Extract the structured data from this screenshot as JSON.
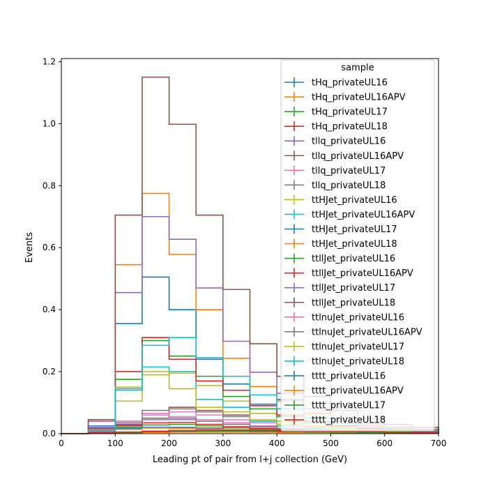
{
  "chart_data": {
    "type": "line",
    "xlabel": "Leading pt of pair from l+j collection (GeV)",
    "ylabel": "Events",
    "xlim": [
      0,
      700
    ],
    "ylim": [
      0,
      1.21
    ],
    "xticks": [
      "0",
      "100",
      "200",
      "300",
      "400",
      "500",
      "600",
      "700"
    ],
    "yticks": [
      "0.0",
      "0.2",
      "0.4",
      "0.6",
      "0.8",
      "1.0",
      "1.2"
    ],
    "grid": false,
    "legend_placement": "top-right",
    "legend_title": "sample",
    "bin_edges": [
      0,
      50,
      100,
      150,
      200,
      250,
      300,
      350,
      400,
      450,
      500,
      550,
      600,
      650,
      700
    ],
    "series": [
      {
        "name": "tHq_privateUL16",
        "color": "#1f77b4",
        "values": [
          0,
          0.015,
          0.017,
          0.02,
          0.02,
          0.018,
          0.012,
          0.01,
          0.008,
          0.006,
          0.005,
          0.004,
          0.003,
          0.002
        ]
      },
      {
        "name": "tHq_privateUL16APV",
        "color": "#ff7f0e",
        "values": [
          0,
          0.012,
          0.014,
          0.018,
          0.017,
          0.015,
          0.011,
          0.009,
          0.007,
          0.005,
          0.004,
          0.003,
          0.002,
          0.002
        ]
      },
      {
        "name": "tHq_privateUL17",
        "color": "#2ca02c",
        "values": [
          0,
          0.01,
          0.02,
          0.028,
          0.03,
          0.025,
          0.018,
          0.014,
          0.011,
          0.008,
          0.006,
          0.005,
          0.004,
          0.003
        ]
      },
      {
        "name": "tHq_privateUL18",
        "color": "#d62728",
        "values": [
          0,
          0.015,
          0.025,
          0.035,
          0.036,
          0.03,
          0.022,
          0.017,
          0.013,
          0.01,
          0.008,
          0.006,
          0.005,
          0.004
        ]
      },
      {
        "name": "tllq_privateUL16",
        "color": "#9467bd",
        "values": [
          0,
          0.02,
          0.03,
          0.045,
          0.045,
          0.04,
          0.03,
          0.022,
          0.016,
          0.012,
          0.009,
          0.007,
          0.005,
          0.004
        ]
      },
      {
        "name": "tllq_privateUL16APV",
        "color": "#8c564b",
        "values": [
          0,
          0.018,
          0.028,
          0.05,
          0.085,
          0.075,
          0.06,
          0.04,
          0.03,
          0.02,
          0.015,
          0.011,
          0.008,
          0.006
        ]
      },
      {
        "name": "tllq_privateUL17",
        "color": "#e377c2",
        "values": [
          0,
          0.012,
          0.035,
          0.065,
          0.07,
          0.06,
          0.045,
          0.035,
          0.025,
          0.018,
          0.013,
          0.01,
          0.007,
          0.005
        ]
      },
      {
        "name": "tllq_privateUL18",
        "color": "#7f7f7f",
        "values": [
          0,
          0.015,
          0.04,
          0.075,
          0.08,
          0.07,
          0.055,
          0.04,
          0.03,
          0.022,
          0.016,
          0.012,
          0.009,
          0.006
        ]
      },
      {
        "name": "ttHJet_privateUL16",
        "color": "#bcbd22",
        "values": [
          0,
          0.005,
          0.105,
          0.19,
          0.195,
          0.155,
          0.105,
          0.065,
          0.04,
          0.025,
          0.016,
          0.011,
          0.007,
          0.005
        ]
      },
      {
        "name": "ttHJet_privateUL16APV",
        "color": "#17becf",
        "values": [
          0,
          0.005,
          0.14,
          0.215,
          0.2,
          0.11,
          0.085,
          0.04,
          0.025,
          0.016,
          0.011,
          0.008,
          0.005,
          0.004
        ]
      },
      {
        "name": "ttHJet_privateUL17",
        "color": "#1f77b4",
        "values": [
          0,
          0.025,
          0.355,
          0.505,
          0.4,
          0.24,
          0.16,
          0.095,
          0.11,
          0.065,
          0.04,
          0.025,
          0.016,
          0.01
        ]
      },
      {
        "name": "ttHJet_privateUL18",
        "color": "#ff7f0e",
        "values": [
          0,
          0.045,
          0.545,
          0.775,
          0.578,
          0.4,
          0.243,
          0.152,
          0.105,
          0.065,
          0.04,
          0.026,
          0.017,
          0.012
        ]
      },
      {
        "name": "ttllJet_privateUL16",
        "color": "#2ca02c",
        "values": [
          0,
          0.008,
          0.175,
          0.3,
          0.25,
          0.185,
          0.12,
          0.08,
          0.055,
          0.035,
          0.022,
          0.015,
          0.01,
          0.007
        ]
      },
      {
        "name": "ttllJet_privateUL16APV",
        "color": "#d62728",
        "values": [
          0,
          0.01,
          0.2,
          0.31,
          0.24,
          0.17,
          0.14,
          0.09,
          0.06,
          0.04,
          0.025,
          0.017,
          0.011,
          0.008
        ]
      },
      {
        "name": "ttllJet_privateUL17",
        "color": "#9467bd",
        "values": [
          0,
          0.04,
          0.455,
          0.7,
          0.627,
          0.47,
          0.298,
          0.198,
          0.13,
          0.08,
          0.05,
          0.032,
          0.02,
          0.014
        ]
      },
      {
        "name": "ttllJet_privateUL18",
        "color": "#8c564b",
        "values": [
          0,
          0.045,
          0.705,
          1.15,
          0.998,
          0.705,
          0.465,
          0.29,
          0.185,
          0.12,
          0.075,
          0.048,
          0.03,
          0.02
        ]
      },
      {
        "name": "ttlnuJet_privateUL16",
        "color": "#e377c2",
        "values": [
          0,
          0.01,
          0.04,
          0.06,
          0.055,
          0.045,
          0.035,
          0.025,
          0.018,
          0.013,
          0.009,
          0.006,
          0.004,
          0.003
        ]
      },
      {
        "name": "ttlnuJet_privateUL16APV",
        "color": "#7f7f7f",
        "values": [
          0,
          0.008,
          0.035,
          0.05,
          0.05,
          0.04,
          0.03,
          0.022,
          0.016,
          0.011,
          0.008,
          0.006,
          0.004,
          0.003
        ]
      },
      {
        "name": "ttlnuJet_privateUL17",
        "color": "#bcbd22",
        "values": [
          0,
          0.01,
          0.15,
          0.2,
          0.145,
          0.085,
          0.07,
          0.045,
          0.03,
          0.02,
          0.013,
          0.009,
          0.006,
          0.004
        ]
      },
      {
        "name": "ttlnuJet_privateUL18",
        "color": "#17becf",
        "values": [
          0,
          0.01,
          0.145,
          0.285,
          0.31,
          0.245,
          0.185,
          0.125,
          0.08,
          0.05,
          0.032,
          0.02,
          0.013,
          0.009
        ]
      },
      {
        "name": "tttt_privateUL16",
        "color": "#1f77b4",
        "values": [
          0,
          0.002,
          0.003,
          0.005,
          0.006,
          0.006,
          0.006,
          0.005,
          0.005,
          0.004,
          0.004,
          0.003,
          0.003,
          0.002
        ]
      },
      {
        "name": "tttt_privateUL16APV",
        "color": "#ff7f0e",
        "values": [
          0,
          0.002,
          0.003,
          0.004,
          0.005,
          0.005,
          0.005,
          0.005,
          0.004,
          0.004,
          0.003,
          0.003,
          0.002,
          0.002
        ]
      },
      {
        "name": "tttt_privateUL17",
        "color": "#2ca02c",
        "values": [
          0,
          0.002,
          0.004,
          0.006,
          0.007,
          0.008,
          0.008,
          0.007,
          0.006,
          0.005,
          0.005,
          0.004,
          0.003,
          0.003
        ]
      },
      {
        "name": "tttt_privateUL18",
        "color": "#d62728",
        "values": [
          0,
          0.003,
          0.005,
          0.008,
          0.01,
          0.011,
          0.011,
          0.01,
          0.009,
          0.008,
          0.007,
          0.006,
          0.005,
          0.004
        ]
      }
    ]
  }
}
